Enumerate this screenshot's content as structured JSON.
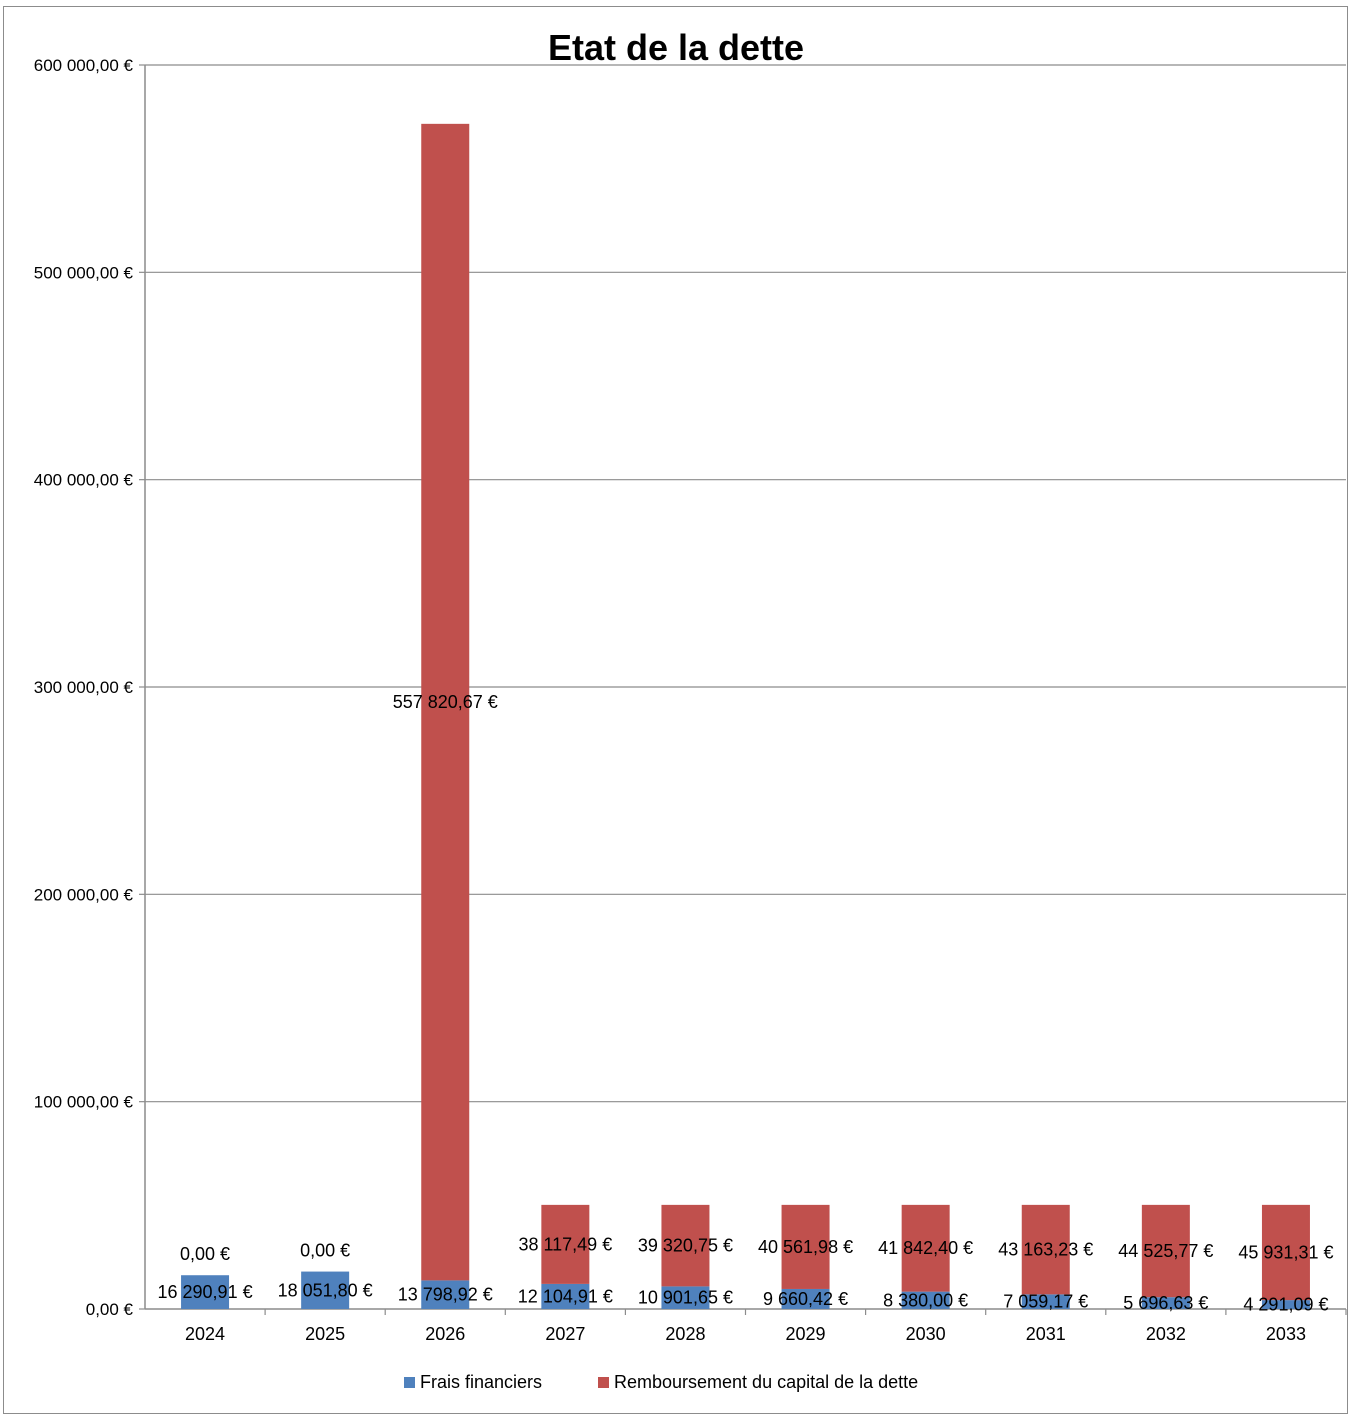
{
  "chart_data": {
    "type": "bar",
    "stacked": true,
    "title": "Etat de la dette",
    "xlabel": "",
    "ylabel": "",
    "ylim": [
      0,
      600000
    ],
    "yticks": [
      0,
      100000,
      200000,
      300000,
      400000,
      500000,
      600000
    ],
    "ytick_labels": [
      "0,00 €",
      "100 000,00 €",
      "200 000,00 €",
      "300 000,00 €",
      "400 000,00 €",
      "500 000,00 €",
      "600 000,00 €"
    ],
    "grid": true,
    "legend_position": "bottom",
    "categories": [
      "2024",
      "2025",
      "2026",
      "2027",
      "2028",
      "2029",
      "2030",
      "2031",
      "2032",
      "2033"
    ],
    "series": [
      {
        "name": "Frais financiers",
        "color": "#4f81bd",
        "values": [
          16290.91,
          18051.8,
          13798.92,
          12104.91,
          10901.65,
          9660.42,
          8380.0,
          7059.17,
          5696.63,
          4291.09
        ],
        "labels": [
          "16 290,91 €",
          "18 051,80 €",
          "13 798,92 €",
          "12 104,91 €",
          "10 901,65 €",
          "9 660,42 €",
          "8 380,00 €",
          "7 059,17 €",
          "5 696,63 €",
          "4 291,09 €"
        ]
      },
      {
        "name": "Remboursement du capital de la dette",
        "color": "#c0504d",
        "values": [
          0,
          0,
          557820.67,
          38117.49,
          39320.75,
          40561.98,
          41842.4,
          43163.23,
          44525.77,
          45931.31
        ],
        "labels": [
          "0,00 €",
          "0,00 €",
          "557 820,67 €",
          "38 117,49 €",
          "39 320,75 €",
          "40 561,98 €",
          "41 842,40 €",
          "43 163,23 €",
          "44 525,77 €",
          "45 931,31 €"
        ]
      }
    ]
  }
}
